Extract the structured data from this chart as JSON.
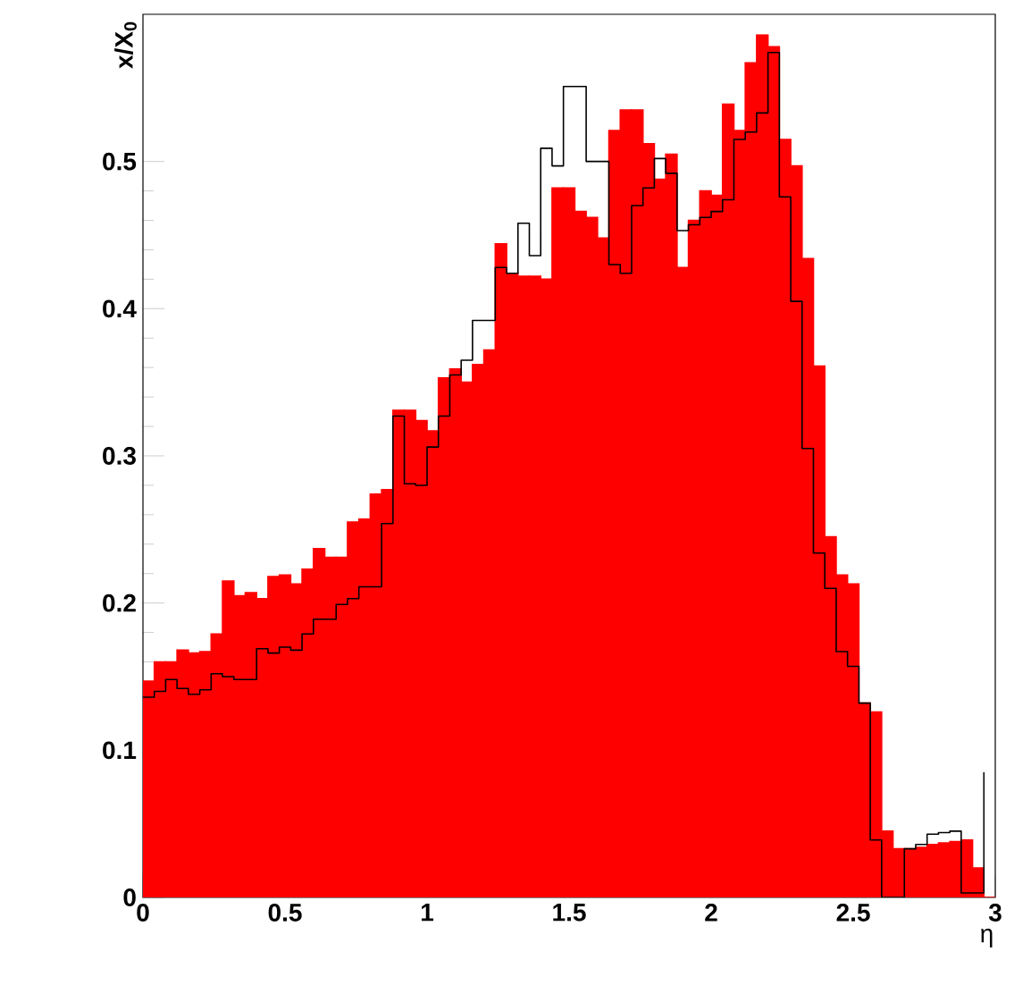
{
  "chart_data": {
    "type": "histogram",
    "xlabel": "η",
    "ylabel": "x/X$_{0}$",
    "bins": [
      0,
      0.04,
      0.08,
      0.12,
      0.16,
      0.2,
      0.24,
      0.28,
      0.32,
      0.36,
      0.4,
      0.44,
      0.48,
      0.52,
      0.56,
      0.6,
      0.64,
      0.68,
      0.72,
      0.76,
      0.8,
      0.84,
      0.88,
      0.92,
      0.96,
      1.0,
      1.04,
      1.08,
      1.12,
      1.16,
      1.2,
      1.24,
      1.28,
      1.32,
      1.36,
      1.4,
      1.44,
      1.48,
      1.52,
      1.56,
      1.6,
      1.64,
      1.68,
      1.72,
      1.76,
      1.8,
      1.84,
      1.88,
      1.92,
      1.96,
      2.0,
      2.04,
      2.08,
      2.12,
      2.16,
      2.2,
      2.24,
      2.28,
      2.32,
      2.36,
      2.4,
      2.44,
      2.48,
      2.52,
      2.56,
      2.6,
      2.64,
      2.68,
      2.72,
      2.76,
      2.8,
      2.84,
      2.88,
      2.92,
      2.96,
      3.0
    ],
    "series": [
      {
        "color": "#ff0000",
        "values": [
          0.147,
          0.16,
          0.16,
          0.168,
          0.166,
          0.167,
          0.179,
          0.215,
          0.205,
          0.207,
          0.203,
          0.218,
          0.219,
          0.213,
          0.223,
          0.237,
          0.231,
          0.231,
          0.255,
          0.257,
          0.274,
          0.277,
          0.331,
          0.331,
          0.324,
          0.317,
          0.353,
          0.359,
          0.35,
          0.362,
          0.372,
          0.444,
          0.424,
          0.422,
          0.422,
          0.42,
          0.482,
          0.482,
          0.466,
          0.462,
          0.448,
          0.521,
          0.535,
          0.535,
          0.512,
          0.488,
          0.505,
          0.428,
          0.46,
          0.48,
          0.477,
          0.539,
          0.521,
          0.567,
          0.586,
          0.578,
          0.515,
          0.497,
          0.434,
          0.361,
          0.245,
          0.219,
          0.213,
          0.132,
          0.126,
          0.045,
          0.033,
          0.033,
          0.034,
          0.036,
          0.037,
          0.038,
          0.039,
          0.02,
          0
        ]
      },
      {
        "type": "step",
        "marker": "none",
        "x": [
          0,
          0.04,
          0.08,
          0.12,
          0.16,
          0.2,
          0.24,
          0.28,
          0.32,
          0.36,
          0.4,
          0.44,
          0.48,
          0.52,
          0.56,
          0.6,
          0.64,
          0.68,
          0.72,
          0.76,
          0.8,
          0.84,
          0.88,
          0.92,
          0.96,
          1.0,
          1.04,
          1.08,
          1.12,
          1.16,
          1.2,
          1.24,
          1.28,
          1.32,
          1.36,
          1.4,
          1.44,
          1.48,
          1.52,
          1.56,
          1.6,
          1.64,
          1.68,
          1.72,
          1.76,
          1.8,
          1.84,
          1.88,
          1.92,
          1.96,
          2.0,
          2.04,
          2.08,
          2.12,
          2.16,
          2.2,
          2.24,
          2.28,
          2.32,
          2.36,
          2.4,
          2.44,
          2.48,
          2.52,
          2.56,
          2.6,
          2.64,
          2.68,
          2.72,
          2.76,
          2.8,
          2.84,
          2.88,
          2.92,
          2.96
        ],
        "color": "#000000",
        "values": [
          0.136,
          0.14,
          0.148,
          0.142,
          0.138,
          0.141,
          0.152,
          0.15,
          0.148,
          0.148,
          0.169,
          0.166,
          0.17,
          0.168,
          0.179,
          0.189,
          0.189,
          0.199,
          0.203,
          0.211,
          0.211,
          0.254,
          0.327,
          0.281,
          0.28,
          0.306,
          0.327,
          0.355,
          0.365,
          0.392,
          0.392,
          0.428,
          0.424,
          0.458,
          0.436,
          0.509,
          0.497,
          0.551,
          0.551,
          0.5,
          0.5,
          0.43,
          0.424,
          0.47,
          0.482,
          0.502,
          0.492,
          0.453,
          0.457,
          0.462,
          0.466,
          0.474,
          0.515,
          0.52,
          0.533,
          0.574,
          0.476,
          0.405,
          0.305,
          0.234,
          0.21,
          0.167,
          0.157,
          0.132,
          0.039,
          0,
          0,
          0.033,
          0.036,
          0.043,
          0.044,
          0.045,
          0.003,
          0.003,
          0.085
        ]
      }
    ],
    "xlim": [
      0,
      3
    ],
    "ylim": [
      0,
      0.6
    ],
    "xticks": [
      0,
      0.5,
      1,
      1.5,
      2,
      2.5,
      3
    ],
    "yticks": [
      0,
      0.1,
      0.2,
      0.3,
      0.4,
      0.5
    ],
    "grid": false
  }
}
